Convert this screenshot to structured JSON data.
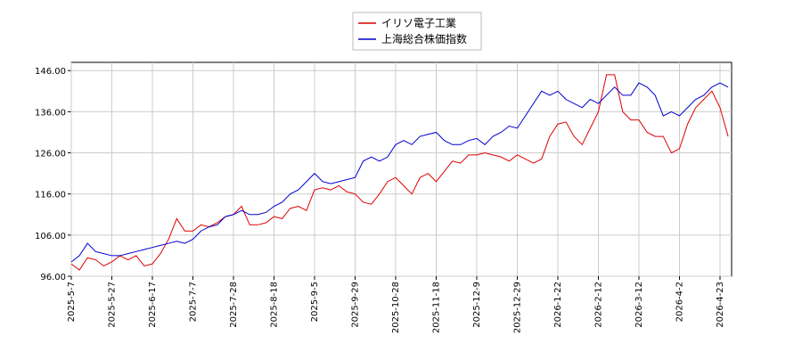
{
  "chart_data": {
    "type": "line",
    "categories": [
      "2025-5-7",
      null,
      null,
      null,
      null,
      "2025-5-27",
      null,
      null,
      null,
      null,
      "2025-6-17",
      null,
      null,
      null,
      null,
      "2025-7-7",
      null,
      null,
      null,
      null,
      "2025-7-28",
      null,
      null,
      null,
      null,
      "2025-8-18",
      null,
      null,
      null,
      null,
      "2025-9-5",
      null,
      null,
      null,
      null,
      "2025-9-29",
      null,
      null,
      null,
      null,
      "2025-10-28",
      null,
      null,
      null,
      null,
      "2025-11-18",
      null,
      null,
      null,
      null,
      "2025-12-9",
      null,
      null,
      null,
      null,
      "2025-12-29",
      null,
      null,
      null,
      null,
      "2026-1-22",
      null,
      null,
      null,
      null,
      "2026-2-12",
      null,
      null,
      null,
      null,
      "2026-3-12",
      null,
      null,
      null,
      null,
      "2026-4-2",
      null,
      null,
      null,
      null,
      "2026-4-23",
      null
    ],
    "series": [
      {
        "name": "イリソ電子工業",
        "color": "#dd0000",
        "values": [
          99,
          97.5,
          100.5,
          100,
          98.5,
          99.5,
          101,
          100,
          101,
          98.5,
          99,
          101.5,
          105,
          110,
          107,
          107,
          108.5,
          108,
          109,
          110.5,
          111,
          113,
          108.5,
          108.5,
          109,
          110.5,
          110,
          112.5,
          113,
          112,
          117,
          117.5,
          117,
          118,
          116.5,
          116,
          114,
          113.5,
          116,
          119,
          120,
          118,
          116,
          120,
          121,
          119,
          121.5,
          124,
          123.5,
          125.5,
          125.5,
          126,
          125.5,
          125,
          124,
          125.5,
          124.5,
          123.5,
          124.5,
          130,
          133,
          133.5,
          130,
          128,
          132,
          136,
          145,
          145,
          136,
          134,
          134,
          131,
          130,
          130,
          126,
          127,
          133,
          137,
          139,
          141,
          137,
          130
        ]
      },
      {
        "name": "上海総合株価指数",
        "color": "#0000cc",
        "values": [
          99.5,
          101,
          104,
          102,
          101.5,
          101,
          101,
          101.5,
          102,
          102.5,
          103,
          103.5,
          104,
          104.5,
          104,
          105,
          107,
          108,
          108.5,
          110.5,
          111,
          112,
          111,
          111,
          111.5,
          113,
          114,
          116,
          117,
          119,
          121,
          119,
          118.5,
          119,
          119.5,
          120,
          124,
          125,
          124,
          125,
          128,
          129,
          128,
          130,
          130.5,
          131,
          129,
          128,
          128,
          129,
          129.5,
          128,
          130,
          131,
          132.5,
          132,
          135,
          138,
          141,
          140,
          141,
          139,
          138,
          137,
          139,
          138,
          140,
          142,
          140,
          140,
          143,
          142,
          140,
          135,
          136,
          135,
          137,
          139,
          140,
          142,
          143,
          142
        ]
      }
    ],
    "ylim": [
      96,
      148
    ],
    "yticks": [
      {
        "value": 96,
        "label": "96.00"
      },
      {
        "value": 106,
        "label": "106.00"
      },
      {
        "value": 116,
        "label": "116.00"
      },
      {
        "value": 126,
        "label": "126.00"
      },
      {
        "value": 136,
        "label": "136.00"
      },
      {
        "value": 146,
        "label": "146.00"
      }
    ],
    "grid": true
  }
}
